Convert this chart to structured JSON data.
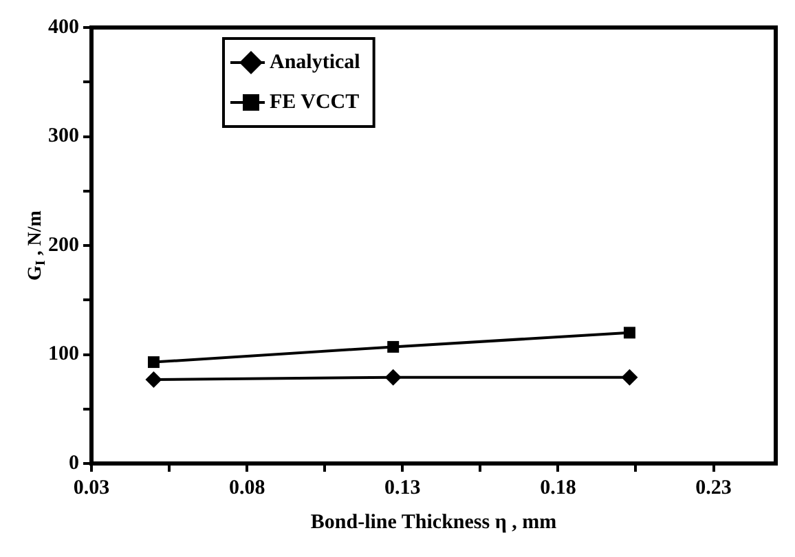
{
  "chart_data": {
    "type": "line",
    "xlabel": "Bond-line Thickness η , mm",
    "ylabel": "G$_{I}$ , N/m",
    "series": [
      {
        "name": "Analytical",
        "color": "#000000",
        "marker": "diamond",
        "x": [
          0.05,
          0.127,
          0.203
        ],
        "values": [
          77,
          79,
          79
        ]
      },
      {
        "name": "FE VCCT",
        "color": "#000000",
        "marker": "square",
        "x": [
          0.05,
          0.127,
          0.203
        ],
        "values": [
          93,
          107,
          120
        ]
      }
    ],
    "xlim": [
      0.03,
      0.25
    ],
    "xticks": [
      0.03,
      {
        "value": 0.055,
        "label": null
      },
      0.08,
      {
        "value": 0.105,
        "label": null
      },
      0.13,
      {
        "value": 0.155,
        "label": null
      },
      0.18,
      {
        "value": 0.205,
        "label": null
      },
      0.23
    ],
    "ylim": [
      0,
      400
    ],
    "yticks": [
      0,
      {
        "value": 50,
        "label": null
      },
      100,
      {
        "value": 150,
        "label": null
      },
      200,
      {
        "value": 250,
        "label": null
      },
      300,
      {
        "value": 350,
        "label": null
      },
      400
    ],
    "grid": false,
    "legend": "top left",
    "line_style": "solid"
  }
}
